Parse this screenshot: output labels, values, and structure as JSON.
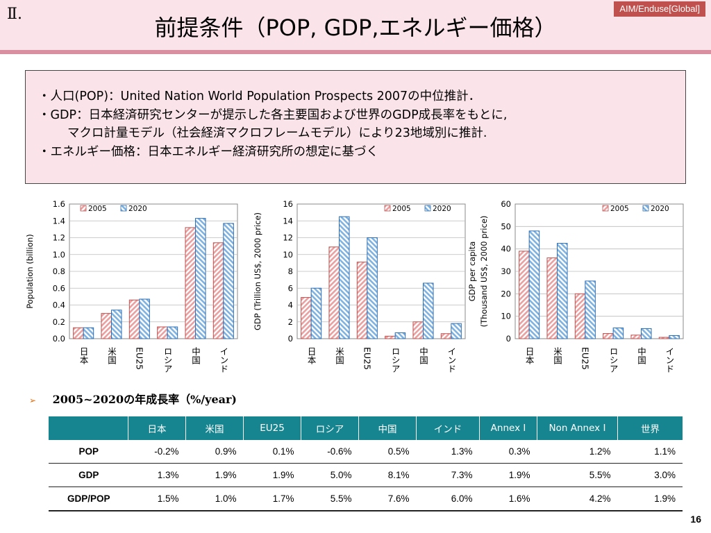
{
  "header": {
    "section_number": "Ⅱ.",
    "title": "前提条件（POP, GDP,エネルギー価格）",
    "tag": "AIM/Enduse[Global]"
  },
  "info": {
    "lines": [
      "・人口(POP)：United Nation World Population Prospects 2007の中位推計．",
      "・GDP：日本経済研究センターが提示した各主要国および世界のGDP成長率をもとに,",
      "マクロ計量モデル（社会経済マクロフレームモデル）により23地域別に推計.",
      "・エネルギー価格：日本エネルギー経済研究所の想定に基づく"
    ]
  },
  "colors": {
    "header_bg": "#fbe3ea",
    "header_line": "#d98f9f",
    "tag_bg": "#c0504d",
    "series_2005": "#e9a0a0",
    "series_2005_stroke": "#c0504d",
    "series_2020": "#7fb2df",
    "series_2020_stroke": "#2e6eb5",
    "table_header_bg": "#17858f"
  },
  "chart_data": [
    {
      "type": "bar",
      "categories": [
        "日本",
        "米国",
        "EU25",
        "ロシア",
        "中国",
        "インド"
      ],
      "series": [
        {
          "name": "2005",
          "values": [
            0.13,
            0.3,
            0.46,
            0.14,
            1.32,
            1.14
          ]
        },
        {
          "name": "2020",
          "values": [
            0.13,
            0.34,
            0.47,
            0.14,
            1.43,
            1.37
          ]
        }
      ],
      "ylabel_lines": [
        "Population (billion)"
      ],
      "ylim": [
        0,
        1.6
      ],
      "yticks": [
        "0.0",
        "0.2",
        "0.4",
        "0.6",
        "0.8",
        "1.0",
        "1.2",
        "1.4",
        "1.6"
      ],
      "legend": "top-left",
      "grid": true
    },
    {
      "type": "bar",
      "categories": [
        "日本",
        "米国",
        "EU25",
        "ロシア",
        "中国",
        "インド"
      ],
      "series": [
        {
          "name": "2005",
          "values": [
            4.9,
            10.9,
            9.1,
            0.3,
            2.0,
            0.6
          ]
        },
        {
          "name": "2020",
          "values": [
            6.0,
            14.5,
            12.0,
            0.7,
            6.6,
            1.8
          ]
        }
      ],
      "ylabel_lines": [
        "GDP (Trillion US$, 2000 price)"
      ],
      "ylim": [
        0,
        16
      ],
      "yticks": [
        "0",
        "2",
        "4",
        "6",
        "8",
        "10",
        "12",
        "14",
        "16"
      ],
      "legend": "top-right",
      "grid": true
    },
    {
      "type": "bar",
      "categories": [
        "日本",
        "米国",
        "EU25",
        "ロシア",
        "中国",
        "インド"
      ],
      "series": [
        {
          "name": "2005",
          "values": [
            39,
            36,
            20,
            2.3,
            1.6,
            0.6
          ]
        },
        {
          "name": "2020",
          "values": [
            48,
            42.5,
            25.7,
            4.8,
            4.5,
            1.4
          ]
        }
      ],
      "ylabel_lines": [
        "GDP per capita",
        "(Thousand US$, 2000 price)"
      ],
      "ylim": [
        0,
        60
      ],
      "yticks": [
        "0",
        "10",
        "20",
        "30",
        "40",
        "50",
        "60"
      ],
      "legend": "top-right",
      "grid": true
    }
  ],
  "growth_table": {
    "heading_arrow": "➢",
    "heading": "2005~2020の年成長率（%/year)",
    "columns": [
      "",
      "日本",
      "米国",
      "EU25",
      "ロシア",
      "中国",
      "インド",
      "Annex I",
      "Non Annex I",
      "世界"
    ],
    "rows": [
      {
        "label": "POP",
        "values": [
          "-0.2%",
          "0.9%",
          "0.1%",
          "-0.6%",
          "0.5%",
          "1.3%",
          "0.3%",
          "1.2%",
          "1.1%"
        ]
      },
      {
        "label": "GDP",
        "values": [
          "1.3%",
          "1.9%",
          "1.9%",
          "5.0%",
          "8.1%",
          "7.3%",
          "1.9%",
          "5.5%",
          "3.0%"
        ]
      },
      {
        "label": "GDP/POP",
        "values": [
          "1.5%",
          "1.0%",
          "1.7%",
          "5.5%",
          "7.6%",
          "6.0%",
          "1.6%",
          "4.2%",
          "1.9%"
        ]
      }
    ]
  },
  "page_number": "16"
}
